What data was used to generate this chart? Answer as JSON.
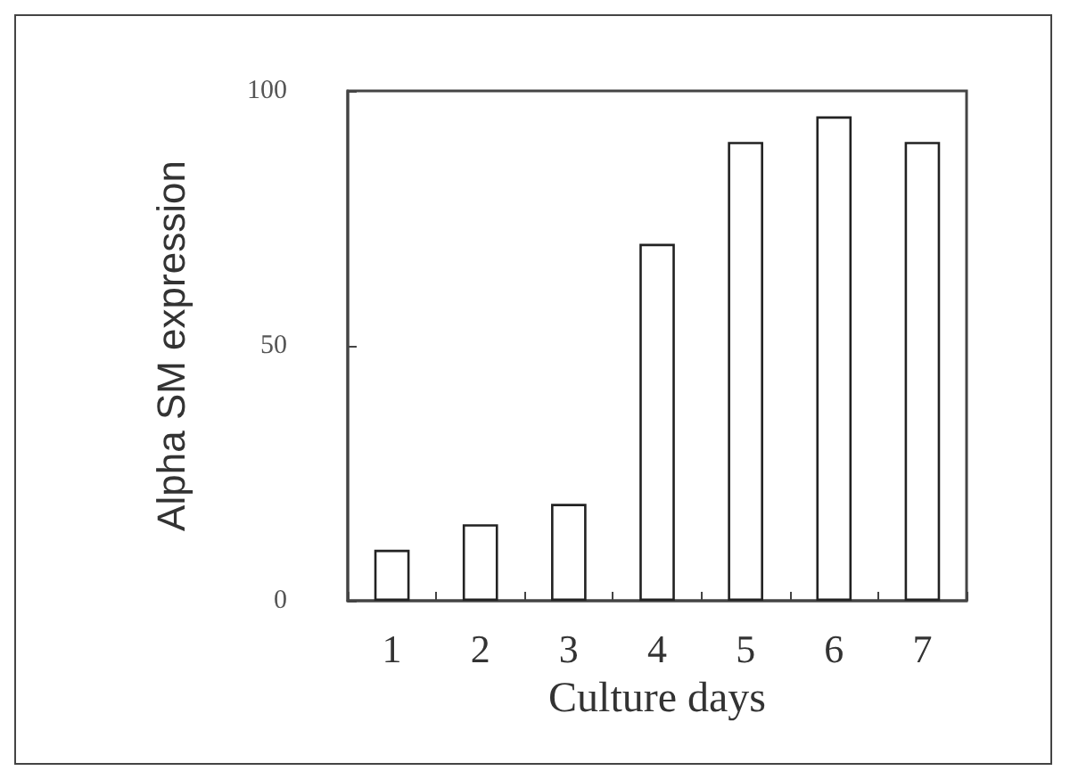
{
  "chart_data": {
    "type": "bar",
    "xlabel": "Culture days",
    "ylabel": "Alpha SM expression",
    "categories": [
      "1",
      "2",
      "3",
      "4",
      "5",
      "6",
      "7"
    ],
    "values": [
      10,
      15,
      19,
      70,
      90,
      95,
      90
    ],
    "color": "#ffffff",
    "ylim": [
      0,
      100
    ],
    "yticks": [
      0,
      50,
      100
    ],
    "grid": false
  }
}
